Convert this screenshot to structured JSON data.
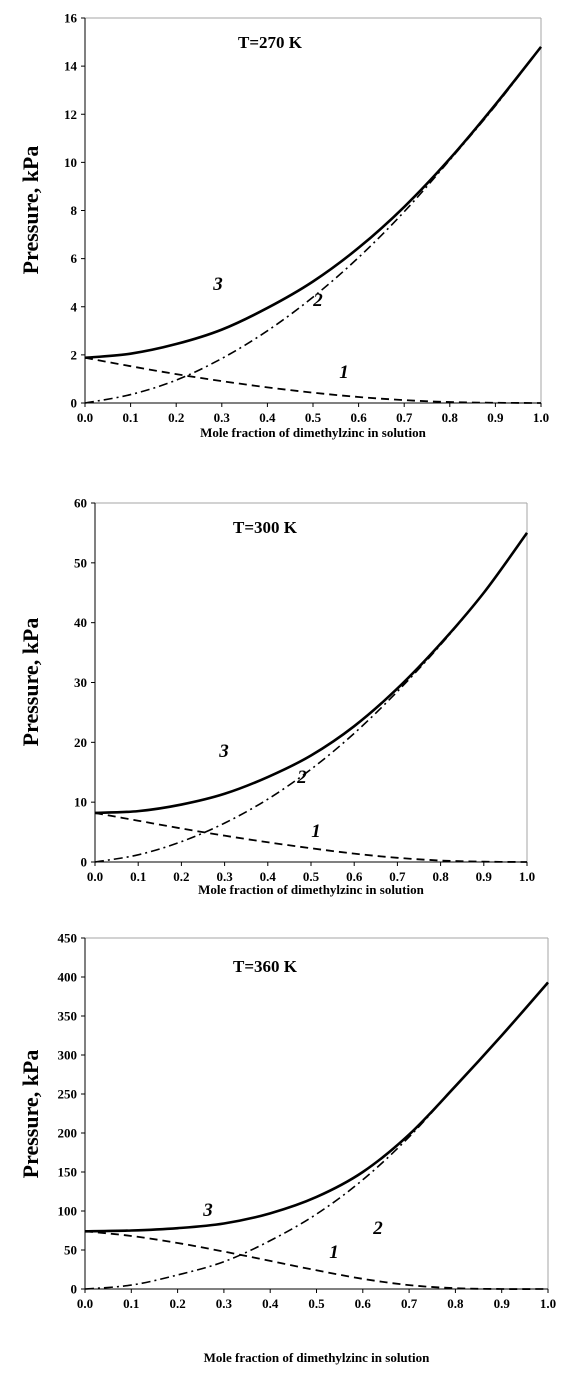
{
  "chart_data": [
    {
      "type": "line",
      "title": "T=270 K",
      "xlabel": "Mole fraction of dimethylzinc in solution",
      "ylabel": "Pressure, kPa",
      "xlim": [
        0,
        1
      ],
      "ylim": [
        0,
        16
      ],
      "xticks": [
        "0.0",
        "0.1",
        "0.2",
        "0.3",
        "0.4",
        "0.5",
        "0.6",
        "0.7",
        "0.8",
        "0.9",
        "1.0"
      ],
      "yticks": [
        "0",
        "2",
        "4",
        "6",
        "8",
        "10",
        "12",
        "14",
        "16"
      ],
      "x": [
        0.0,
        0.1,
        0.2,
        0.3,
        0.4,
        0.5,
        0.6,
        0.7,
        0.8,
        0.9,
        1.0
      ],
      "series": [
        {
          "name": "1",
          "style": "dashed",
          "values": [
            1.88,
            1.53,
            1.2,
            0.91,
            0.65,
            0.43,
            0.25,
            0.12,
            0.04,
            0.01,
            0.0
          ]
        },
        {
          "name": "2",
          "style": "dash-dot",
          "values": [
            0.0,
            0.35,
            0.95,
            1.85,
            3.0,
            4.4,
            6.05,
            7.95,
            10.1,
            12.35,
            14.8
          ]
        },
        {
          "name": "3",
          "style": "solid",
          "values": [
            1.88,
            2.05,
            2.45,
            3.05,
            3.95,
            5.05,
            6.45,
            8.15,
            10.15,
            12.4,
            14.8
          ]
        }
      ]
    },
    {
      "type": "line",
      "title": "T=300 K",
      "xlabel": "Mole fraction of dimethylzinc in solution",
      "ylabel": "Pressure, kPa",
      "xlim": [
        0,
        1
      ],
      "ylim": [
        0,
        60
      ],
      "xticks": [
        "0.0",
        "0.1",
        "0.2",
        "0.3",
        "0.4",
        "0.5",
        "0.6",
        "0.7",
        "0.8",
        "0.9",
        "1.0"
      ],
      "yticks": [
        "0",
        "10",
        "20",
        "30",
        "40",
        "50",
        "60"
      ],
      "x": [
        0.0,
        0.1,
        0.2,
        0.3,
        0.4,
        0.5,
        0.6,
        0.7,
        0.8,
        0.9,
        1.0
      ],
      "series": [
        {
          "name": "1",
          "style": "dashed",
          "values": [
            8.2,
            6.9,
            5.6,
            4.4,
            3.3,
            2.3,
            1.4,
            0.7,
            0.25,
            0.05,
            0.0
          ]
        },
        {
          "name": "2",
          "style": "dash-dot",
          "values": [
            0.0,
            1.2,
            3.4,
            6.5,
            10.5,
            15.5,
            21.5,
            28.5,
            36.3,
            45.0,
            55.0
          ]
        },
        {
          "name": "3",
          "style": "solid",
          "values": [
            8.2,
            8.5,
            9.6,
            11.4,
            14.2,
            17.8,
            22.7,
            29.0,
            36.5,
            45.0,
            55.0
          ]
        }
      ]
    },
    {
      "type": "line",
      "title": "T=360 K",
      "xlabel": "Mole fraction of dimethylzinc in solution",
      "ylabel": "Pressure, kPa",
      "xlim": [
        0,
        1
      ],
      "ylim": [
        0,
        450
      ],
      "xticks": [
        "0.0",
        "0.1",
        "0.2",
        "0.3",
        "0.4",
        "0.5",
        "0.6",
        "0.7",
        "0.8",
        "0.9",
        "1.0"
      ],
      "yticks": [
        "0",
        "50",
        "100",
        "150",
        "200",
        "250",
        "300",
        "350",
        "400",
        "450"
      ],
      "x": [
        0.0,
        0.1,
        0.2,
        0.3,
        0.4,
        0.5,
        0.6,
        0.7,
        0.8,
        0.9,
        1.0
      ],
      "series": [
        {
          "name": "1",
          "style": "dashed",
          "values": [
            74,
            68,
            59,
            48,
            36,
            24,
            13,
            5,
            1,
            0,
            0
          ]
        },
        {
          "name": "2",
          "style": "dash-dot",
          "values": [
            0,
            5,
            18,
            35,
            62,
            96,
            140,
            195,
            260,
            325,
            393
          ]
        },
        {
          "name": "3",
          "style": "solid",
          "values": [
            74,
            75,
            78,
            84,
            97,
            118,
            150,
            198,
            260,
            325,
            393
          ]
        }
      ]
    }
  ]
}
